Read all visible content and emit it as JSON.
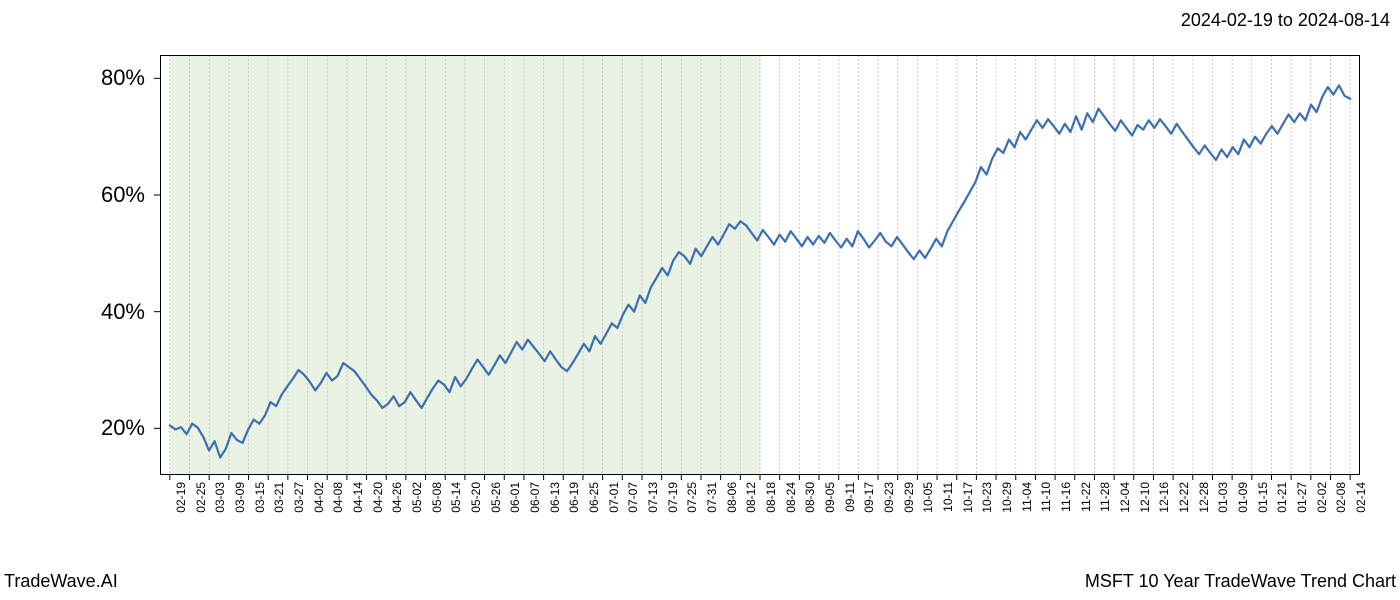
{
  "date_range": "2024-02-19 to 2024-08-14",
  "footer_left": "TradeWave.AI",
  "footer_right": "MSFT 10 Year TradeWave Trend Chart",
  "chart": {
    "type": "line",
    "background_color": "#ffffff",
    "line_color": "#3b6fb0",
    "line_width": 2.2,
    "grid_color": "#bfbfbf",
    "grid_dash": "2,2",
    "border_color": "#000000",
    "highlight_fill": "#d8e8ce",
    "highlight_opacity": 0.55,
    "highlight_start_index": 0,
    "highlight_end_index": 30,
    "ylim": [
      12,
      84
    ],
    "yticks": [
      20,
      40,
      60,
      80
    ],
    "ytick_labels": [
      "20%",
      "40%",
      "60%",
      "80%"
    ],
    "y_label_fontsize": 22,
    "x_label_fontsize": 12,
    "x_label_rotation": -90,
    "xticks": [
      "02-19",
      "02-25",
      "03-03",
      "03-09",
      "03-15",
      "03-21",
      "03-27",
      "04-02",
      "04-08",
      "04-14",
      "04-20",
      "04-26",
      "05-02",
      "05-08",
      "05-14",
      "05-20",
      "05-26",
      "06-01",
      "06-07",
      "06-13",
      "06-19",
      "06-25",
      "07-01",
      "07-07",
      "07-13",
      "07-19",
      "07-25",
      "07-31",
      "08-06",
      "08-12",
      "08-18",
      "08-24",
      "08-30",
      "09-05",
      "09-11",
      "09-17",
      "09-23",
      "09-29",
      "10-05",
      "10-11",
      "10-17",
      "10-23",
      "10-29",
      "11-04",
      "11-10",
      "11-16",
      "11-22",
      "11-28",
      "12-04",
      "12-10",
      "12-16",
      "12-22",
      "12-28",
      "01-03",
      "01-09",
      "01-15",
      "01-21",
      "01-27",
      "02-02",
      "02-08",
      "02-14"
    ],
    "values": [
      20.5,
      19.8,
      20.2,
      19.0,
      20.8,
      20.1,
      18.5,
      16.2,
      17.8,
      15.0,
      16.5,
      19.2,
      18.0,
      17.5,
      19.8,
      21.5,
      20.8,
      22.2,
      24.5,
      23.8,
      25.8,
      27.2,
      28.5,
      30.0,
      29.2,
      28.0,
      26.5,
      27.8,
      29.5,
      28.2,
      29.0,
      31.2,
      30.5,
      29.8,
      28.5,
      27.2,
      25.8,
      24.8,
      23.5,
      24.2,
      25.5,
      23.8,
      24.5,
      26.2,
      24.8,
      23.5,
      25.2,
      26.8,
      28.2,
      27.5,
      26.2,
      28.8,
      27.2,
      28.5,
      30.2,
      31.8,
      30.5,
      29.2,
      30.8,
      32.5,
      31.2,
      33.0,
      34.8,
      33.5,
      35.2,
      34.0,
      32.8,
      31.5,
      33.2,
      31.8,
      30.5,
      29.8,
      31.2,
      32.8,
      34.5,
      33.2,
      35.8,
      34.5,
      36.2,
      38.0,
      37.2,
      39.5,
      41.2,
      40.0,
      42.8,
      41.5,
      44.2,
      45.8,
      47.5,
      46.2,
      48.8,
      50.2,
      49.5,
      48.2,
      50.8,
      49.5,
      51.2,
      52.8,
      51.5,
      53.2,
      55.0,
      54.2,
      55.5,
      54.8,
      53.5,
      52.2,
      54.0,
      52.8,
      51.5,
      53.2,
      52.0,
      53.8,
      52.5,
      51.2,
      52.8,
      51.5,
      53.0,
      51.8,
      53.5,
      52.2,
      51.0,
      52.5,
      51.2,
      53.8,
      52.5,
      51.0,
      52.2,
      53.5,
      52.0,
      51.2,
      52.8,
      51.5,
      50.2,
      49.0,
      50.5,
      49.2,
      50.8,
      52.5,
      51.2,
      53.8,
      55.5,
      57.2,
      58.8,
      60.5,
      62.2,
      64.8,
      63.5,
      66.2,
      68.0,
      67.2,
      69.5,
      68.2,
      70.8,
      69.5,
      71.2,
      72.8,
      71.5,
      73.0,
      71.8,
      70.5,
      72.2,
      70.8,
      73.5,
      71.2,
      74.0,
      72.5,
      74.8,
      73.5,
      72.2,
      71.0,
      72.8,
      71.5,
      70.2,
      72.0,
      71.2,
      72.8,
      71.5,
      73.0,
      71.8,
      70.5,
      72.2,
      70.8,
      69.5,
      68.2,
      67.0,
      68.5,
      67.2,
      66.0,
      67.8,
      66.5,
      68.2,
      67.0,
      69.5,
      68.2,
      70.0,
      68.8,
      70.5,
      71.8,
      70.5,
      72.2,
      73.8,
      72.5,
      74.0,
      72.8,
      75.5,
      74.2,
      76.8,
      78.5,
      77.2,
      78.8,
      77.0,
      76.5
    ]
  }
}
